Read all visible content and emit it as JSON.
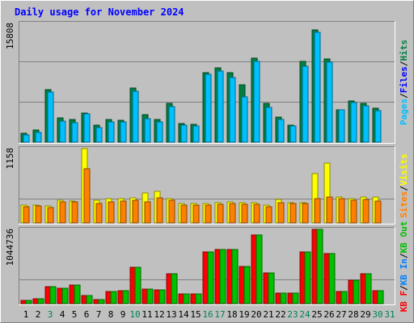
{
  "chart_data": [
    {
      "type": "bar",
      "title": "Daily usage for November 2024",
      "ymax_label": "15808",
      "ymax": 15808,
      "categories": [
        "1",
        "2",
        "3",
        "4",
        "5",
        "6",
        "7",
        "8",
        "9",
        "10",
        "11",
        "12",
        "13",
        "14",
        "15",
        "16",
        "17",
        "18",
        "19",
        "20",
        "21",
        "22",
        "23",
        "24",
        "25",
        "26",
        "27",
        "28",
        "29",
        "30",
        "31"
      ],
      "weekend_days": [
        "3",
        "10",
        "16",
        "17",
        "23",
        "24",
        "30",
        "31"
      ],
      "axis_label_parts": [
        "Pages",
        "Files",
        "Hits"
      ],
      "series": [
        {
          "name": "Hits",
          "color": "#008040",
          "values": [
            1220,
            1570,
            6930,
            3200,
            3020,
            3850,
            2190,
            2980,
            2840,
            7190,
            3590,
            2960,
            5090,
            2480,
            2350,
            9200,
            9810,
            9200,
            7580,
            11110,
            5120,
            3340,
            2280,
            10640,
            14830,
            10960,
            4270,
            5460,
            5180,
            4530,
            0
          ]
        },
        {
          "name": "Pages",
          "color": "#00c0ff",
          "values": [
            1000,
            1300,
            6620,
            2760,
            2610,
            3700,
            1890,
            2650,
            2650,
            6710,
            3110,
            2630,
            4700,
            2240,
            2100,
            8950,
            9360,
            8550,
            5990,
            10690,
            4580,
            3030,
            2120,
            10050,
            14530,
            10600,
            4240,
            5260,
            4820,
            4170,
            0
          ]
        }
      ]
    },
    {
      "type": "bar",
      "ymax_label": "1158",
      "ymax": 1158,
      "categories": [
        "1",
        "2",
        "3",
        "4",
        "5",
        "6",
        "7",
        "8",
        "9",
        "10",
        "11",
        "12",
        "13",
        "14",
        "15",
        "16",
        "17",
        "18",
        "19",
        "20",
        "21",
        "22",
        "23",
        "24",
        "25",
        "26",
        "27",
        "28",
        "29",
        "30",
        "31"
      ],
      "axis_label_parts": [
        "Sites",
        "Visits"
      ],
      "series": [
        {
          "name": "Visits",
          "color": "#ffff00",
          "values": [
            283,
            283,
            265,
            353,
            342,
            1158,
            353,
            376,
            376,
            391,
            470,
            486,
            383,
            302,
            302,
            296,
            314,
            321,
            310,
            314,
            275,
            361,
            310,
            318,
            771,
            927,
            406,
            383,
            402,
            399,
            0
          ]
        },
        {
          "name": "Sites",
          "color": "#ff8000",
          "values": [
            256,
            264,
            241,
            326,
            322,
            845,
            302,
            326,
            337,
            353,
            322,
            391,
            352,
            283,
            283,
            276,
            291,
            302,
            294,
            291,
            253,
            314,
            298,
            306,
            383,
            398,
            375,
            356,
            369,
            341,
            0
          ]
        }
      ]
    },
    {
      "type": "bar",
      "ymax_label": "1044736",
      "ymax": 1044736,
      "categories": [
        "1",
        "2",
        "3",
        "4",
        "5",
        "6",
        "7",
        "8",
        "9",
        "10",
        "11",
        "12",
        "13",
        "14",
        "15",
        "16",
        "17",
        "18",
        "19",
        "20",
        "21",
        "22",
        "23",
        "24",
        "25",
        "26",
        "27",
        "28",
        "29",
        "30",
        "31"
      ],
      "axis_label_parts": [
        "KB F",
        "KB In",
        "KB Out"
      ],
      "series": [
        {
          "name": "KB F",
          "color": "#ff0000",
          "values": [
            50000,
            70000,
            240000,
            220000,
            260000,
            110000,
            60000,
            170000,
            180000,
            510000,
            200000,
            190000,
            420000,
            140000,
            140000,
            730000,
            760000,
            760000,
            520000,
            970000,
            430000,
            150000,
            150000,
            730000,
            1044736,
            700000,
            170000,
            330000,
            420000,
            180000,
            0
          ]
        },
        {
          "name": "KB In",
          "color": "#0080ff",
          "values": [
            0,
            0,
            0,
            0,
            0,
            0,
            0,
            0,
            0,
            0,
            0,
            0,
            0,
            0,
            0,
            0,
            0,
            0,
            0,
            0,
            0,
            0,
            0,
            0,
            0,
            0,
            0,
            0,
            0,
            0,
            0
          ]
        },
        {
          "name": "KB Out",
          "color": "#00c000",
          "values": [
            50000,
            70000,
            240000,
            220000,
            260000,
            110000,
            60000,
            170000,
            180000,
            510000,
            200000,
            190000,
            420000,
            140000,
            140000,
            730000,
            760000,
            760000,
            520000,
            970000,
            430000,
            150000,
            150000,
            730000,
            1044736,
            700000,
            170000,
            330000,
            420000,
            180000,
            0
          ]
        }
      ]
    }
  ]
}
